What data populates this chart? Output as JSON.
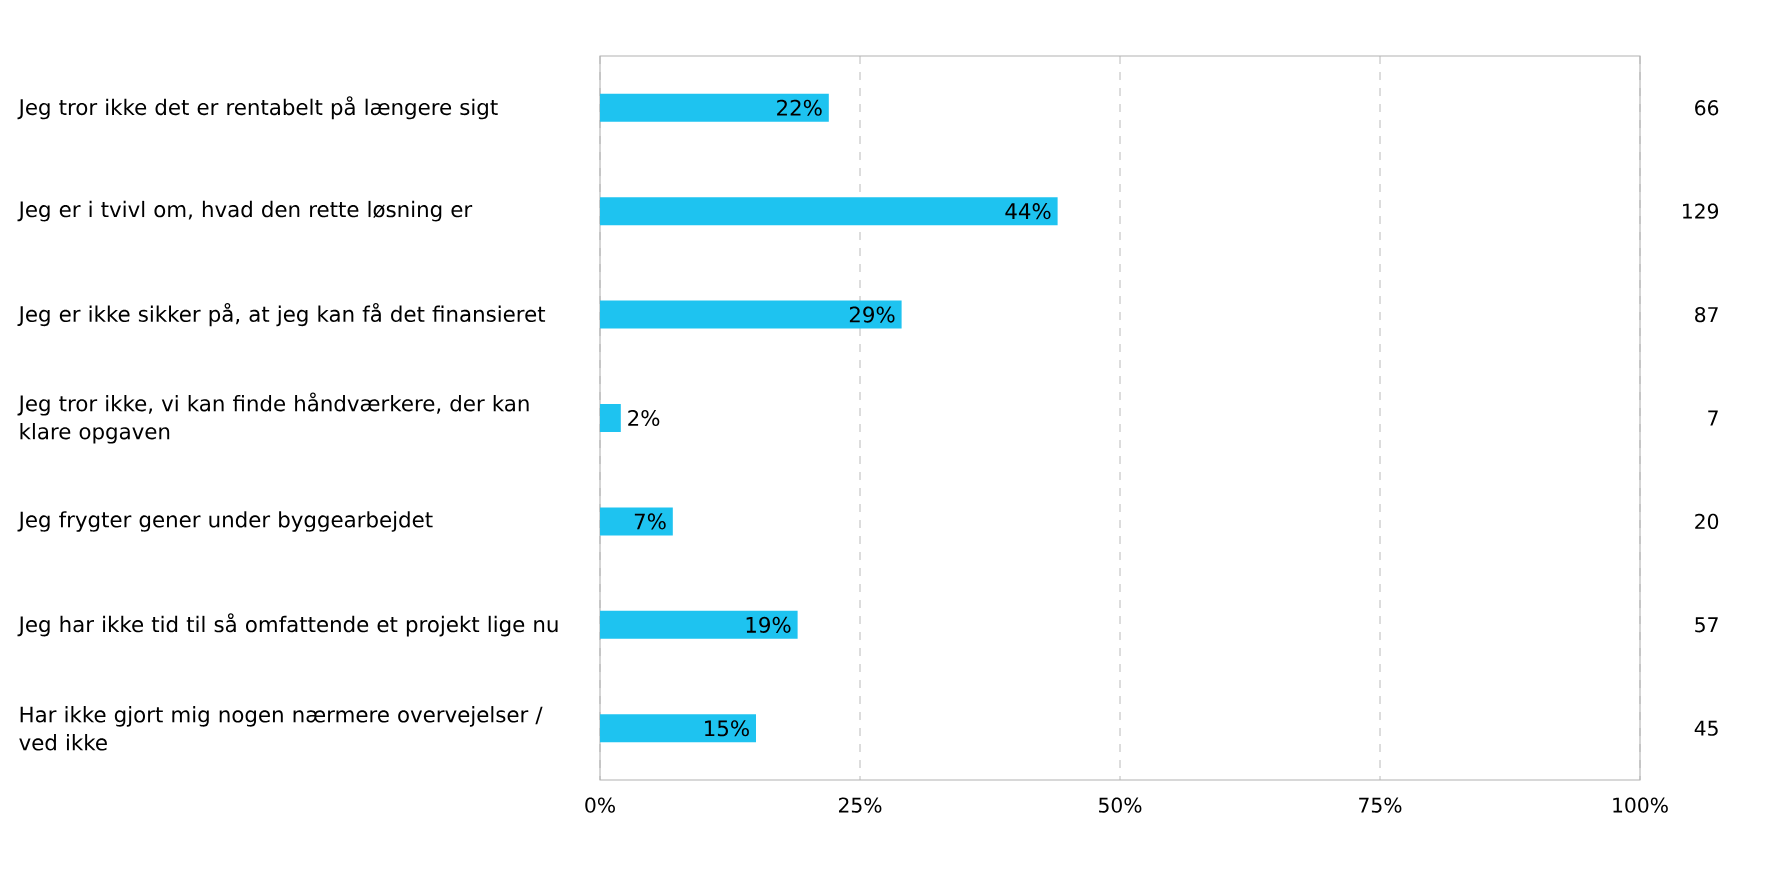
{
  "chart_data": {
    "type": "bar",
    "orientation": "horizontal",
    "categories": [
      "Jeg tror ikke det er rentabelt på længere sigt",
      "Jeg er i tvivl om, hvad den rette løsning er",
      "Jeg er ikke sikker på, at jeg kan få det finansieret",
      "Jeg tror ikke, vi kan finde håndværkere, der kan klare opgaven",
      "Jeg frygter gener under byggearbejdet",
      "Jeg har ikke tid til så omfattende et projekt lige nu",
      "Har ikke gjort mig nogen nærmere overvejelser / ved ikke"
    ],
    "values": [
      22,
      44,
      29,
      2,
      7,
      19,
      15
    ],
    "value_labels": [
      "22%",
      "44%",
      "29%",
      "2%",
      "7%",
      "19%",
      "15%"
    ],
    "color": "#1ec3f0",
    "xlim": [
      0,
      100
    ],
    "xticks": [
      {
        "value": 0,
        "label": "0%"
      },
      {
        "value": 25,
        "label": "25%"
      },
      {
        "value": 50,
        "label": "50%"
      },
      {
        "value": 75,
        "label": "75%"
      },
      {
        "value": 100,
        "label": "100%"
      }
    ],
    "grid": "x",
    "annotations": [
      "66",
      "129",
      "87",
      "7",
      "20",
      "57",
      "45"
    ]
  }
}
